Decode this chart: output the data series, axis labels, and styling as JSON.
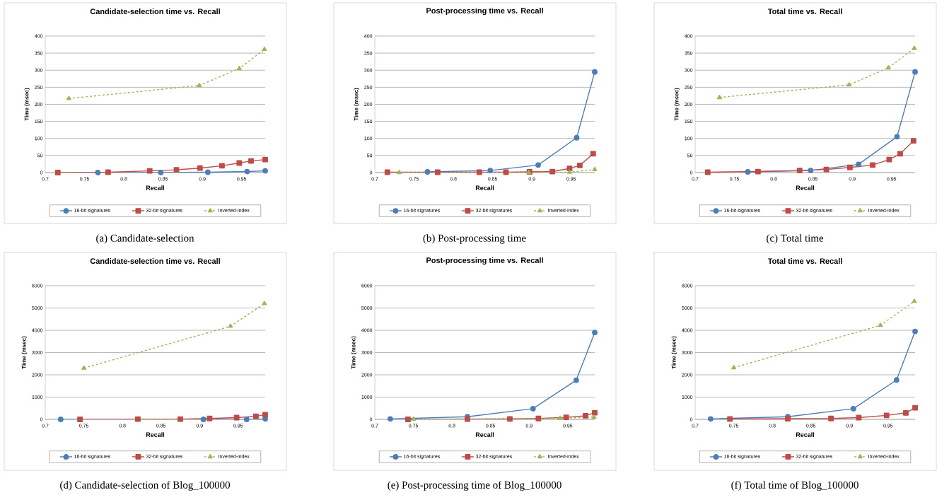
{
  "chart_data": [
    {
      "type": "line",
      "title": "Candidate-selection time vs. Recall",
      "xlabel": "Recall",
      "ylabel": "Time (msec)",
      "xlim": [
        0.7,
        0.98
      ],
      "xticks": [
        0.7,
        0.75,
        0.8,
        0.85,
        0.9,
        0.95
      ],
      "ylim": [
        0,
        400
      ],
      "yticks": [
        0,
        50,
        100,
        150,
        200,
        250,
        300,
        350,
        400
      ],
      "grid": "y",
      "legend": "bottom",
      "annotations": [
        "(a) Candidate-selection"
      ],
      "series": [
        {
          "name": "16-bit signatures",
          "color": "#4a7ebb",
          "marker": "circle",
          "line_style": "solid",
          "x": [
            0.767,
            0.847,
            0.907,
            0.957,
            0.98
          ],
          "values": [
            0,
            0,
            1,
            3,
            5
          ]
        },
        {
          "name": "32-bit signatures",
          "color": "#be4b48",
          "marker": "square",
          "line_style": "solid",
          "x": [
            0.716,
            0.78,
            0.833,
            0.867,
            0.897,
            0.925,
            0.947,
            0.962,
            0.98
          ],
          "values": [
            0,
            1,
            5,
            8,
            13,
            20,
            28,
            34,
            38
          ]
        },
        {
          "name": "Inverted-index",
          "color": "#98b954",
          "marker": "triangle",
          "line_style": "dashed",
          "x": [
            0.73,
            0.896,
            0.947,
            0.979
          ],
          "values": [
            217,
            255,
            305,
            361
          ]
        }
      ]
    },
    {
      "type": "line",
      "title": "Post-processing time vs. Recall",
      "xlabel": "Recall",
      "ylabel": "Time (msec)",
      "xlim": [
        0.7,
        0.98
      ],
      "xticks": [
        0.7,
        0.75,
        0.8,
        0.85,
        0.9,
        0.95
      ],
      "ylim": [
        0,
        400
      ],
      "yticks": [
        0,
        50,
        100,
        150,
        200,
        250,
        300,
        350,
        400
      ],
      "grid": "y",
      "legend": "bottom",
      "annotations": [
        "(b) Post-processing time"
      ],
      "series": [
        {
          "name": "16-bit signatures",
          "color": "#4a7ebb",
          "marker": "circle",
          "line_style": "solid",
          "x": [
            0.767,
            0.847,
            0.908,
            0.957,
            0.98
          ],
          "values": [
            2,
            6,
            22,
            102,
            295
          ]
        },
        {
          "name": "32-bit signatures",
          "color": "#be4b48",
          "marker": "square",
          "line_style": "solid",
          "x": [
            0.716,
            0.78,
            0.833,
            0.867,
            0.897,
            0.926,
            0.948,
            0.961,
            0.978
          ],
          "values": [
            1,
            1,
            1,
            1,
            2,
            3,
            12,
            21,
            55
          ]
        },
        {
          "name": "Inverted-index",
          "color": "#98b954",
          "marker": "triangle",
          "line_style": "dashed",
          "x": [
            0.731,
            0.896,
            0.948,
            0.98
          ],
          "values": [
            0,
            0,
            1,
            9
          ]
        }
      ]
    },
    {
      "type": "line",
      "title": "Total time vs. Recall",
      "xlabel": "Recall",
      "ylabel": "Time (msec)",
      "xlim": [
        0.7,
        0.98
      ],
      "xticks": [
        0.7,
        0.75,
        0.8,
        0.85,
        0.9,
        0.95
      ],
      "ylim": [
        0,
        400
      ],
      "yticks": [
        0,
        50,
        100,
        150,
        200,
        250,
        300,
        350,
        400
      ],
      "grid": "y",
      "legend": "bottom",
      "annotations": [
        "(c) Total time"
      ],
      "series": [
        {
          "name": "16-bit signatures",
          "color": "#4a7ebb",
          "marker": "circle",
          "line_style": "solid",
          "x": [
            0.767,
            0.847,
            0.908,
            0.957,
            0.98
          ],
          "values": [
            2,
            6,
            24,
            105,
            295
          ]
        },
        {
          "name": "32-bit signatures",
          "color": "#be4b48",
          "marker": "square",
          "line_style": "solid",
          "x": [
            0.716,
            0.78,
            0.833,
            0.867,
            0.897,
            0.926,
            0.947,
            0.961,
            0.978
          ],
          "values": [
            1,
            3,
            6,
            9,
            15,
            22,
            38,
            55,
            93
          ]
        },
        {
          "name": "Inverted-index",
          "color": "#98b954",
          "marker": "triangle",
          "line_style": "dashed",
          "x": [
            0.731,
            0.896,
            0.946,
            0.979
          ],
          "values": [
            220,
            257,
            307,
            364
          ]
        }
      ]
    },
    {
      "type": "line",
      "title": "Candidate-selection time vs. Recall",
      "xlabel": "Recall",
      "ylabel": "Time (msec)",
      "xlim": [
        0.7,
        0.985
      ],
      "xticks": [
        0.7,
        0.75,
        0.8,
        0.85,
        0.9,
        0.95
      ],
      "ylim": [
        0,
        6000
      ],
      "yticks": [
        0,
        1000,
        2000,
        3000,
        4000,
        5000,
        6000
      ],
      "grid": "y",
      "legend": "bottom",
      "annotations": [
        "(d) Candidate-selection of Blog_100000"
      ],
      "series": [
        {
          "name": "16-bit signatures",
          "color": "#4a7ebb",
          "marker": "circle",
          "line_style": "solid",
          "x": [
            0.72,
            0.905,
            0.961,
            0.985
          ],
          "values": [
            0,
            0,
            0,
            20
          ]
        },
        {
          "name": "32-bit signatures",
          "color": "#be4b48",
          "marker": "square",
          "line_style": "solid",
          "x": [
            0.745,
            0.82,
            0.875,
            0.913,
            0.948,
            0.973,
            0.985
          ],
          "values": [
            0,
            10,
            10,
            40,
            80,
            140,
            210
          ]
        },
        {
          "name": "Inverted-index",
          "color": "#98b954",
          "marker": "triangle",
          "line_style": "dashed",
          "x": [
            0.75,
            0.94,
            0.984
          ],
          "values": [
            2300,
            4180,
            5200
          ]
        }
      ]
    },
    {
      "type": "line",
      "title": "Post-processing time vs. Recall",
      "xlabel": "Recall",
      "ylabel": "Time (msec)",
      "xlim": [
        0.7,
        0.985
      ],
      "xticks": [
        0.7,
        0.75,
        0.8,
        0.85,
        0.9,
        0.95
      ],
      "ylim": [
        0,
        6000
      ],
      "yticks": [
        0,
        1000,
        2000,
        3000,
        4000,
        5000,
        6000
      ],
      "grid": "y",
      "legend": "bottom",
      "annotations": [
        "(e) Post-processing time of Blog_100000"
      ],
      "series": [
        {
          "name": "16-bit signatures",
          "color": "#4a7ebb",
          "marker": "circle",
          "line_style": "solid",
          "x": [
            0.72,
            0.82,
            0.905,
            0.961,
            0.985
          ],
          "values": [
            20,
            120,
            480,
            1760,
            3900
          ]
        },
        {
          "name": "32-bit signatures",
          "color": "#be4b48",
          "marker": "square",
          "line_style": "solid",
          "x": [
            0.743,
            0.82,
            0.875,
            0.912,
            0.948,
            0.973,
            0.985
          ],
          "values": [
            0,
            10,
            20,
            40,
            90,
            160,
            300
          ]
        },
        {
          "name": "Inverted-index",
          "color": "#98b954",
          "marker": "triangle",
          "line_style": "dashed",
          "x": [
            0.75,
            0.94,
            0.984
          ],
          "values": [
            10,
            50,
            100
          ]
        }
      ]
    },
    {
      "type": "line",
      "title": "Total time vs. Recall",
      "xlabel": "Recall",
      "ylabel": "Time (msec)",
      "xlim": [
        0.7,
        0.985
      ],
      "xticks": [
        0.7,
        0.75,
        0.8,
        0.85,
        0.9,
        0.95
      ],
      "ylim": [
        0,
        6000
      ],
      "yticks": [
        0,
        1000,
        2000,
        3000,
        4000,
        5000,
        6000
      ],
      "grid": "y",
      "legend": "bottom",
      "annotations": [
        "(f) Total time of Blog_100000"
      ],
      "series": [
        {
          "name": "16-bit signatures",
          "color": "#4a7ebb",
          "marker": "circle",
          "line_style": "solid",
          "x": [
            0.72,
            0.82,
            0.905,
            0.961,
            0.985
          ],
          "values": [
            20,
            120,
            480,
            1770,
            3950
          ]
        },
        {
          "name": "32-bit signatures",
          "color": "#be4b48",
          "marker": "square",
          "line_style": "solid",
          "x": [
            0.745,
            0.82,
            0.876,
            0.912,
            0.948,
            0.973,
            0.985
          ],
          "values": [
            20,
            30,
            40,
            80,
            180,
            290,
            520
          ]
        },
        {
          "name": "Inverted-index",
          "color": "#98b954",
          "marker": "triangle",
          "line_style": "dashed",
          "x": [
            0.75,
            0.94,
            0.984
          ],
          "values": [
            2320,
            4220,
            5300
          ]
        }
      ]
    }
  ]
}
